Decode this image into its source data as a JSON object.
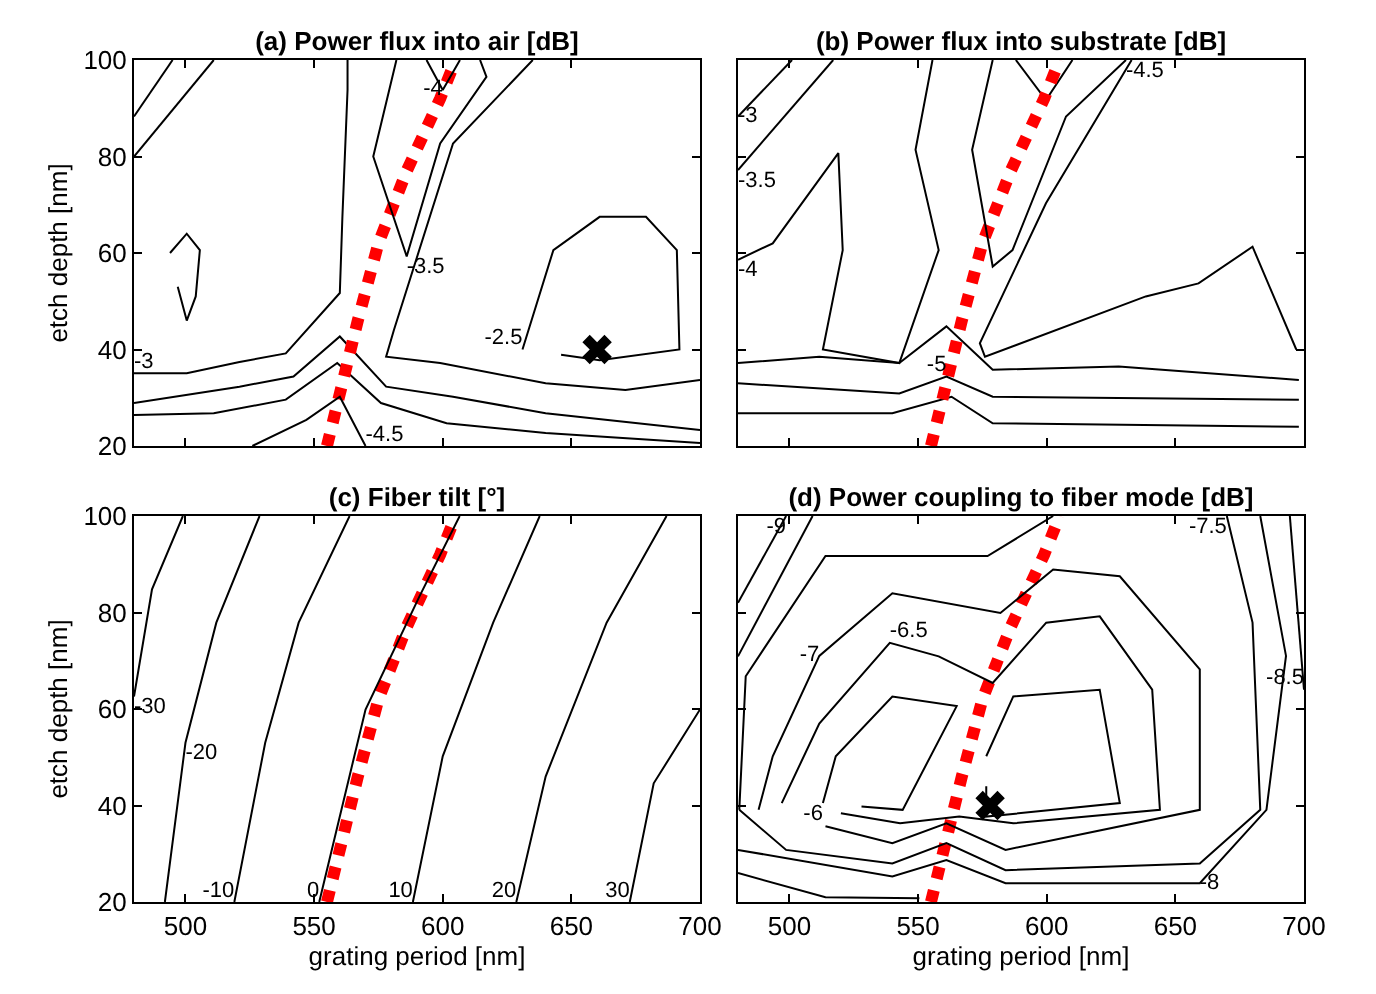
{
  "chart_data": [
    {
      "type": "line",
      "title": "(a) Power flux into air [dB]",
      "ylabel": "etch depth [nm]",
      "xlim": [
        480,
        700
      ],
      "xticks": [
        500,
        550,
        600,
        650,
        700
      ],
      "ylim": [
        20,
        100
      ],
      "yticks": [
        20,
        40,
        60,
        80,
        100
      ],
      "tick_labels": "y",
      "grid": false,
      "series": [
        {
          "name": "-3",
          "color": "#000000",
          "x": [
            480,
            500.5,
            521,
            539,
            560,
            561,
            563,
            563
          ],
          "values": [
            35.1,
            35.1,
            37.4,
            39.2,
            51.7,
            67.5,
            93.8,
            100
          ]
        },
        {
          "color": "#000000",
          "x": [
            635,
            604,
            581,
            578,
            599,
            640,
            671,
            700
          ],
          "values": [
            100,
            82.7,
            44,
            38.5,
            37.2,
            33,
            31.6,
            33.7
          ]
        },
        {
          "color": "#000000",
          "x": [
            480,
            511
          ],
          "values": [
            80,
            100
          ]
        },
        {
          "name": "-3.5",
          "color": "#000000",
          "x": [
            582,
            573,
            586,
            599,
            617,
            614.5
          ],
          "values": [
            100,
            80,
            59.3,
            82.7,
            96.5,
            100
          ]
        },
        {
          "color": "#000000",
          "x": [
            480,
            521,
            542,
            560,
            578,
            604,
            640,
            700
          ],
          "values": [
            28.9,
            32.3,
            34.4,
            42.7,
            32.3,
            30.2,
            26.8,
            23.3
          ]
        },
        {
          "name": "-4",
          "color": "#000000",
          "x": [
            593.7,
            600,
            606.7
          ],
          "values": [
            100,
            93.8,
            100
          ]
        },
        {
          "color": "#000000",
          "x": [
            480,
            511,
            539,
            559,
            576,
            601.5,
            640,
            700
          ],
          "values": [
            26.4,
            26.8,
            29.6,
            37.2,
            28.9,
            24.7,
            22.7,
            20.6
          ]
        },
        {
          "name": "-4.5",
          "color": "#000000",
          "x": [
            526,
            547,
            560,
            570
          ],
          "values": [
            20,
            25.4,
            30.2,
            20
          ]
        },
        {
          "name": "-2.5",
          "color": "#000000",
          "x": [
            631,
            643,
            661,
            679,
            691,
            692,
            661,
            646
          ],
          "values": [
            40,
            60.6,
            67.5,
            67.5,
            60.6,
            40,
            37.8,
            38.9
          ]
        },
        {
          "color": "#000000",
          "x": [
            494,
            500.5,
            505.6,
            504,
            500.5,
            497
          ],
          "values": [
            60,
            64,
            60.6,
            51,
            46,
            53
          ]
        },
        {
          "color": "#000000",
          "x": [
            480,
            495
          ],
          "values": [
            88.3,
            100
          ]
        },
        {
          "color": "#ff0000",
          "line_style": "dotted",
          "x": [
            555,
            567,
            575,
            586,
            599,
            605
          ],
          "values": [
            20,
            46,
            62,
            77,
            92,
            100
          ]
        },
        {
          "type": "scatter",
          "marker": "cross",
          "color": "#000000",
          "x": [
            660
          ],
          "values": [
            40
          ]
        }
      ]
    },
    {
      "type": "line",
      "title": "(b) Power flux into substrate [dB]",
      "xlim": [
        480,
        700
      ],
      "xticks": [
        500,
        550,
        600,
        650,
        700
      ],
      "ylim": [
        20,
        100
      ],
      "yticks": [
        20,
        40,
        60,
        80,
        100
      ],
      "tick_labels": false,
      "grid": false,
      "series": [
        {
          "name": "-3",
          "color": "#000000",
          "x": [
            480,
            501
          ],
          "values": [
            88.3,
            100
          ]
        },
        {
          "name": "-3.5",
          "color": "#000000",
          "x": [
            480,
            517
          ],
          "values": [
            77.2,
            100
          ]
        },
        {
          "name": "-4",
          "color": "#000000",
          "x": [
            480,
            493.5,
            519,
            520.7,
            513,
            542.7,
            558,
            549,
            555.6
          ],
          "values": [
            58.6,
            62,
            80.7,
            60.6,
            40,
            37.2,
            60.6,
            81.4,
            100
          ]
        },
        {
          "color": "#000000",
          "x": [
            633,
            599.7,
            574,
            576,
            638.5,
            659,
            680,
            697
          ],
          "values": [
            100,
            70.3,
            41.3,
            38.5,
            51,
            53.7,
            61.3,
            40
          ]
        },
        {
          "name": "-4.5",
          "color": "#000000",
          "x": [
            579,
            571,
            579,
            586.7,
            607.5,
            630.8
          ],
          "values": [
            100,
            81.4,
            57.2,
            60.6,
            88.3,
            100
          ]
        },
        {
          "color": "#000000",
          "x": [
            480,
            511.6,
            542.7,
            561,
            579,
            628,
            698
          ],
          "values": [
            37.2,
            38.5,
            37.2,
            44.8,
            35.8,
            36.5,
            33.7
          ]
        },
        {
          "name": "-5",
          "color": "#000000",
          "x": [
            480,
            542.7,
            561,
            579,
            698
          ],
          "values": [
            33,
            30.9,
            34.4,
            30.2,
            29.6
          ]
        },
        {
          "color": "#000000",
          "x": [
            588,
            599.7,
            610
          ],
          "values": [
            100,
            91.7,
            100
          ]
        },
        {
          "color": "#000000",
          "x": [
            480,
            540,
            563,
            579,
            698
          ],
          "values": [
            26.8,
            26.8,
            30.2,
            24.7,
            24
          ]
        },
        {
          "color": "#ff0000",
          "line_style": "dotted",
          "x": [
            555,
            567,
            575,
            586,
            599,
            605
          ],
          "values": [
            20,
            46,
            62,
            77,
            92,
            100
          ]
        }
      ]
    },
    {
      "type": "line",
      "title": "(c) Fiber tilt [°]",
      "xlabel": "grating period [nm]",
      "ylabel": "etch depth [nm]",
      "xlim": [
        480,
        700
      ],
      "xticks": [
        500,
        550,
        600,
        650,
        700
      ],
      "ylim": [
        20,
        100
      ],
      "yticks": [
        20,
        40,
        60,
        80,
        100
      ],
      "grid": false,
      "series": [
        {
          "name": "-30",
          "color": "#000000",
          "x": [
            480,
            487,
            499
          ],
          "values": [
            62.6,
            84.8,
            100
          ]
        },
        {
          "name": "-20",
          "color": "#000000",
          "x": [
            492,
            500,
            512,
            528.8
          ],
          "values": [
            20,
            53,
            77.9,
            100
          ]
        },
        {
          "name": "-10",
          "color": "#000000",
          "x": [
            519,
            531,
            544,
            563.8
          ],
          "values": [
            20,
            53,
            77.9,
            100
          ]
        },
        {
          "name": "0",
          "color": "#000000",
          "x": [
            552,
            570,
            591,
            606.6
          ],
          "values": [
            20,
            59.9,
            83.4,
            100
          ]
        },
        {
          "name": "10",
          "color": "#000000",
          "x": [
            588.4,
            600,
            619.6,
            637.7
          ],
          "values": [
            20,
            50.2,
            77.9,
            100
          ]
        },
        {
          "name": "20",
          "color": "#000000",
          "x": [
            628.6,
            640,
            663.7,
            687
          ],
          "values": [
            20,
            46,
            77.9,
            100
          ]
        },
        {
          "name": "30",
          "color": "#000000",
          "x": [
            672.7,
            682,
            700
          ],
          "values": [
            20,
            44.6,
            59.9
          ]
        },
        {
          "color": "#ff0000",
          "line_style": "dotted",
          "x": [
            555,
            567,
            575,
            586,
            599,
            605
          ],
          "values": [
            20,
            46,
            62,
            77,
            92,
            100
          ]
        }
      ]
    },
    {
      "type": "line",
      "title": "(d) Power coupling to fiber mode [dB]",
      "xlabel": "grating period [nm]",
      "xlim": [
        480,
        700
      ],
      "xticks": [
        500,
        550,
        600,
        650,
        700
      ],
      "ylim": [
        20,
        100
      ],
      "yticks": [
        20,
        40,
        60,
        80,
        100
      ],
      "tick_labels": "x",
      "grid": false,
      "series": [
        {
          "name": "-6",
          "color": "#000000",
          "x": [
            513,
            518,
            540,
            565,
            544,
            528
          ],
          "values": [
            40.5,
            50.2,
            62.6,
            60.6,
            39.1,
            39.8
          ]
        },
        {
          "color": "#000000",
          "x": [
            576.5,
            587,
            620.6,
            628.4,
            576.5,
            576.5
          ],
          "values": [
            50.2,
            62.6,
            64,
            40.5,
            37.7,
            44
          ]
        },
        {
          "name": "-6.5",
          "color": "#000000",
          "x": [
            497,
            511.6,
            539,
            558,
            579,
            599.8,
            620.6,
            641,
            644,
            587,
            566,
            543,
            520
          ],
          "values": [
            40.5,
            57,
            73.7,
            70.9,
            65.4,
            77.9,
            79.2,
            64,
            39.1,
            36.3,
            37.7,
            36.3,
            38.4
          ]
        },
        {
          "name": "-7",
          "color": "#000000",
          "x": [
            488,
            493.5,
            511.6,
            540,
            582,
            602.5,
            628.4,
            659.5,
            659.5,
            584,
            561,
            540,
            514
          ],
          "values": [
            39.1,
            50.2,
            71,
            84,
            79.9,
            88.9,
            87.5,
            68.2,
            39.1,
            30.8,
            36.3,
            32.2,
            35.7
          ]
        },
        {
          "name": "-7.5",
          "color": "#000000",
          "x": [
            670,
            680,
            683,
            659.5,
            584,
            561,
            540,
            498.7,
            480.5
          ],
          "values": [
            100,
            77.9,
            39.1,
            28,
            26.6,
            32.2,
            28,
            30.8,
            39.1
          ]
        },
        {
          "color": "#000000",
          "x": [
            480.5,
            483,
            514,
            577,
            602.5
          ],
          "values": [
            39.1,
            66.8,
            91.7,
            91.7,
            100
          ]
        },
        {
          "name": "-8",
          "color": "#000000",
          "x": [
            480,
            540,
            561,
            584,
            659.5,
            685.4,
            693,
            683
          ],
          "values": [
            30.8,
            25.3,
            28.7,
            23.9,
            23.9,
            39.1,
            71,
            100
          ]
        },
        {
          "name": "-8.5",
          "color": "#000000",
          "x": [
            694.5,
            700
          ],
          "values": [
            100,
            64
          ]
        },
        {
          "color": "#000000",
          "x": [
            480,
            514,
            550.5
          ],
          "values": [
            26,
            21,
            20.8
          ]
        },
        {
          "color": "#000000",
          "x": [
            480,
            509
          ],
          "values": [
            70.9,
            100
          ]
        },
        {
          "name": "-9",
          "color": "#000000",
          "x": [
            480,
            498.7
          ],
          "values": [
            82,
            100
          ]
        },
        {
          "color": "#ff0000",
          "line_style": "dotted",
          "x": [
            555,
            567,
            575,
            586,
            599,
            605
          ],
          "values": [
            20,
            46,
            62,
            77,
            92,
            100
          ]
        },
        {
          "type": "scatter",
          "marker": "cross",
          "color": "#000000",
          "x": [
            578
          ],
          "values": [
            40
          ]
        }
      ]
    }
  ]
}
